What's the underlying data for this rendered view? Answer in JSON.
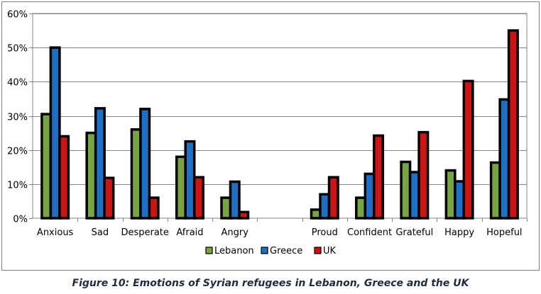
{
  "chart_data": {
    "type": "bar",
    "categories": [
      "Anxious",
      "Sad",
      "Desperate",
      "Afraid",
      "Angry",
      "",
      "Proud",
      "Confident",
      "Grateful",
      "Happy",
      "Hopeful"
    ],
    "series": [
      {
        "name": "Lebanon",
        "color": "#77a543",
        "values": [
          30.5,
          25,
          26,
          18,
          6,
          null,
          2.5,
          6,
          16.5,
          14,
          16.3
        ]
      },
      {
        "name": "Greece",
        "color": "#1f6fc5",
        "values": [
          50,
          32.2,
          32,
          22.5,
          10.7,
          null,
          7,
          13,
          13.5,
          10.8,
          34.8
        ]
      },
      {
        "name": "UK",
        "color": "#cc1414",
        "values": [
          24,
          11.8,
          6,
          12,
          1.8,
          null,
          12,
          24.2,
          25.2,
          40.2,
          55
        ]
      }
    ],
    "yticks": [
      "0%",
      "10%",
      "20%",
      "30%",
      "40%",
      "50%",
      "60%"
    ],
    "ylim": [
      0,
      60
    ],
    "grid": true,
    "legend": "bottom"
  },
  "caption": "Figure 10: Emotions of Syrian refugees in Lebanon, Greece and the UK"
}
